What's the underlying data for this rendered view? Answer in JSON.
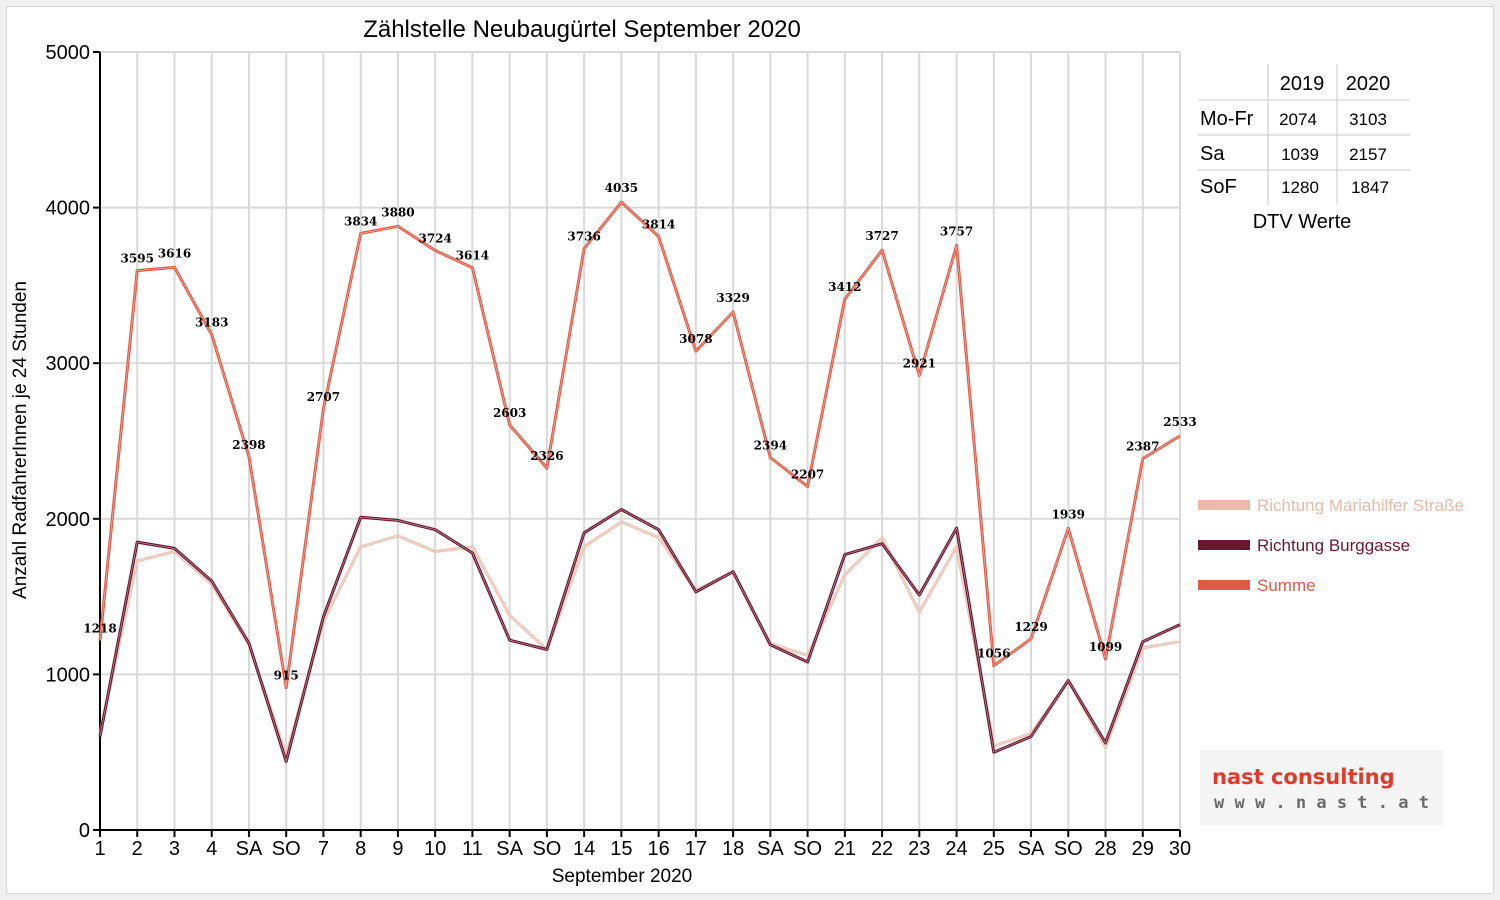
{
  "chart_data": {
    "type": "line",
    "title": "Zählstelle Neubaugürtel September 2020",
    "xlabel": "September 2020",
    "ylabel": "Anzahl RadfahrerInnen je 24 Stunden",
    "ylim": [
      0,
      5000
    ],
    "yticks": [
      "0",
      "1000",
      "2000",
      "3000",
      "4000",
      "5000"
    ],
    "grid": true,
    "legend_position": "right",
    "x": [
      1,
      2,
      3,
      4,
      5,
      6,
      7,
      8,
      9,
      10,
      11,
      12,
      13,
      14,
      15,
      16,
      17,
      18,
      19,
      20,
      21,
      22,
      23,
      24,
      25,
      26,
      27,
      28,
      29,
      30
    ],
    "categories": [
      "1",
      "2",
      "3",
      "4",
      "SA",
      "SO",
      "7",
      "8",
      "9",
      "10",
      "11",
      "SA",
      "SO",
      "14",
      "15",
      "16",
      "17",
      "18",
      "SA",
      "SO",
      "21",
      "22",
      "23",
      "24",
      "25",
      "SA",
      "SO",
      "28",
      "29",
      "30"
    ],
    "category_colors": [
      "#000000",
      "#000000",
      "#000000",
      "#000000",
      "#000000",
      "#e00000",
      "#000000",
      "#000000",
      "#000000",
      "#000000",
      "#000000",
      "#000000",
      "#e00000",
      "#000000",
      "#000000",
      "#000000",
      "#000000",
      "#000000",
      "#000000",
      "#e00000",
      "#000000",
      "#000000",
      "#000000",
      "#000000",
      "#000000",
      "#000000",
      "#e00000",
      "#000000",
      "#000000",
      "#000000"
    ],
    "series": [
      {
        "name": "Richtung Mariahilfer Straße",
        "color": "#e8bba8",
        "values": [
          620,
          1730,
          1790,
          1580,
          1190,
          480,
          1340,
          1820,
          1890,
          1790,
          1820,
          1380,
          1160,
          1820,
          1980,
          1880,
          1540,
          1660,
          1200,
          1120,
          1640,
          1880,
          1400,
          1820,
          540,
          620,
          960,
          530,
          1170,
          1210
        ]
      },
      {
        "name": "Richtung Burggasse",
        "color": "#6b1730",
        "values": [
          600,
          1850,
          1810,
          1600,
          1200,
          440,
          1370,
          2010,
          1990,
          1930,
          1780,
          1220,
          1160,
          1910,
          2060,
          1930,
          1530,
          1660,
          1190,
          1080,
          1770,
          1840,
          1510,
          1940,
          500,
          600,
          960,
          560,
          1210,
          1320
        ]
      },
      {
        "name": "Summe",
        "color": "#e05a45",
        "values": [
          1218,
          3595,
          3616,
          3183,
          2398,
          915,
          2707,
          3834,
          3880,
          3724,
          3614,
          2603,
          2326,
          3736,
          4035,
          3814,
          3078,
          3329,
          2394,
          2207,
          3412,
          3727,
          2921,
          3757,
          1056,
          1229,
          1939,
          1099,
          2387,
          2533
        ]
      }
    ],
    "data_labels": [
      "1218",
      "3595",
      "3616",
      "3183",
      "2398",
      "915",
      "2707",
      "3834",
      "3880",
      "3724",
      "3614",
      "2603",
      "2326",
      "3736",
      "4035",
      "3814",
      "3078",
      "3329",
      "2394",
      "2207",
      "3412",
      "3727",
      "2921",
      "3757",
      "1056",
      "1229",
      "1939",
      "1099",
      "2387",
      "2533"
    ]
  },
  "dtv_table": {
    "caption": "DTV Werte",
    "headers": [
      "2019",
      "2020"
    ],
    "rows": [
      {
        "label": "Mo-Fr",
        "v2019": "2074",
        "v2020": "3103"
      },
      {
        "label": "Sa",
        "v2019": "1039",
        "v2020": "2157"
      },
      {
        "label": "SoF",
        "v2019": "1280",
        "v2020": "1847"
      }
    ]
  },
  "logo": {
    "name": "nast consulting",
    "url": "w w w . n a s t . a t",
    "color_main": "#e03a2a",
    "color_secondary": "#6b6b6b"
  }
}
